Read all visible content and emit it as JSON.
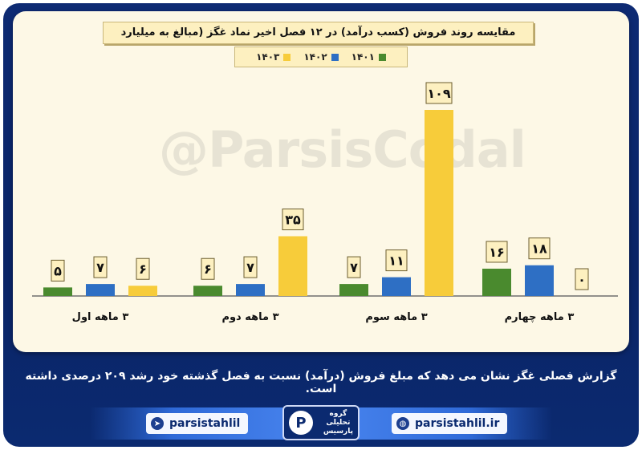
{
  "colors": {
    "series_1401": "#4a8a2e",
    "series_1402": "#2e6fc4",
    "series_1403": "#f7cc3a",
    "panel_bg": "#fdf8e6",
    "frame_bg": "#0d2a73"
  },
  "chart_data": {
    "type": "bar",
    "title": "مقایسه روند فروش (کسب درآمد) در ۱۲ فصل اخیر نماد غگز (مبالغ به میلیارد تومان)",
    "categories": [
      "۳ ماهه اول",
      "۳ ماهه دوم",
      "۳ ماهه سوم",
      "۳ ماهه چهارم"
    ],
    "series": [
      {
        "name": "۱۴۰۱",
        "values": [
          5,
          6,
          7,
          16
        ],
        "labels": [
          "۵",
          "۶",
          "۷",
          "۱۶"
        ]
      },
      {
        "name": "۱۴۰۲",
        "values": [
          7,
          7,
          11,
          18
        ],
        "labels": [
          "۷",
          "۷",
          "۱۱",
          "۱۸"
        ]
      },
      {
        "name": "۱۴۰۳",
        "values": [
          6,
          35,
          109,
          0
        ],
        "labels": [
          "۶",
          "۳۵",
          "۱۰۹",
          "۰"
        ]
      }
    ],
    "ylim": [
      0,
      120
    ],
    "grid": false,
    "legend_position": "top-center"
  },
  "watermark": "@ParsisCodal",
  "summary_text": "گزارش فصلی غگز نشان می دهد که مبلغ فروش (درآمد) نسبت به فصل گذشته خود رشد ۲۰۹ درصدی داشته است.",
  "footer": {
    "telegram_label": "parsistahlil",
    "telegram_icon": "telegram-icon",
    "website_label": "parsistahlil.ir",
    "website_icon": "globe-icon",
    "logo_text_line1": "گروه",
    "logo_text_line2": "تحلیلی",
    "logo_text_line3": "پارسیس"
  }
}
